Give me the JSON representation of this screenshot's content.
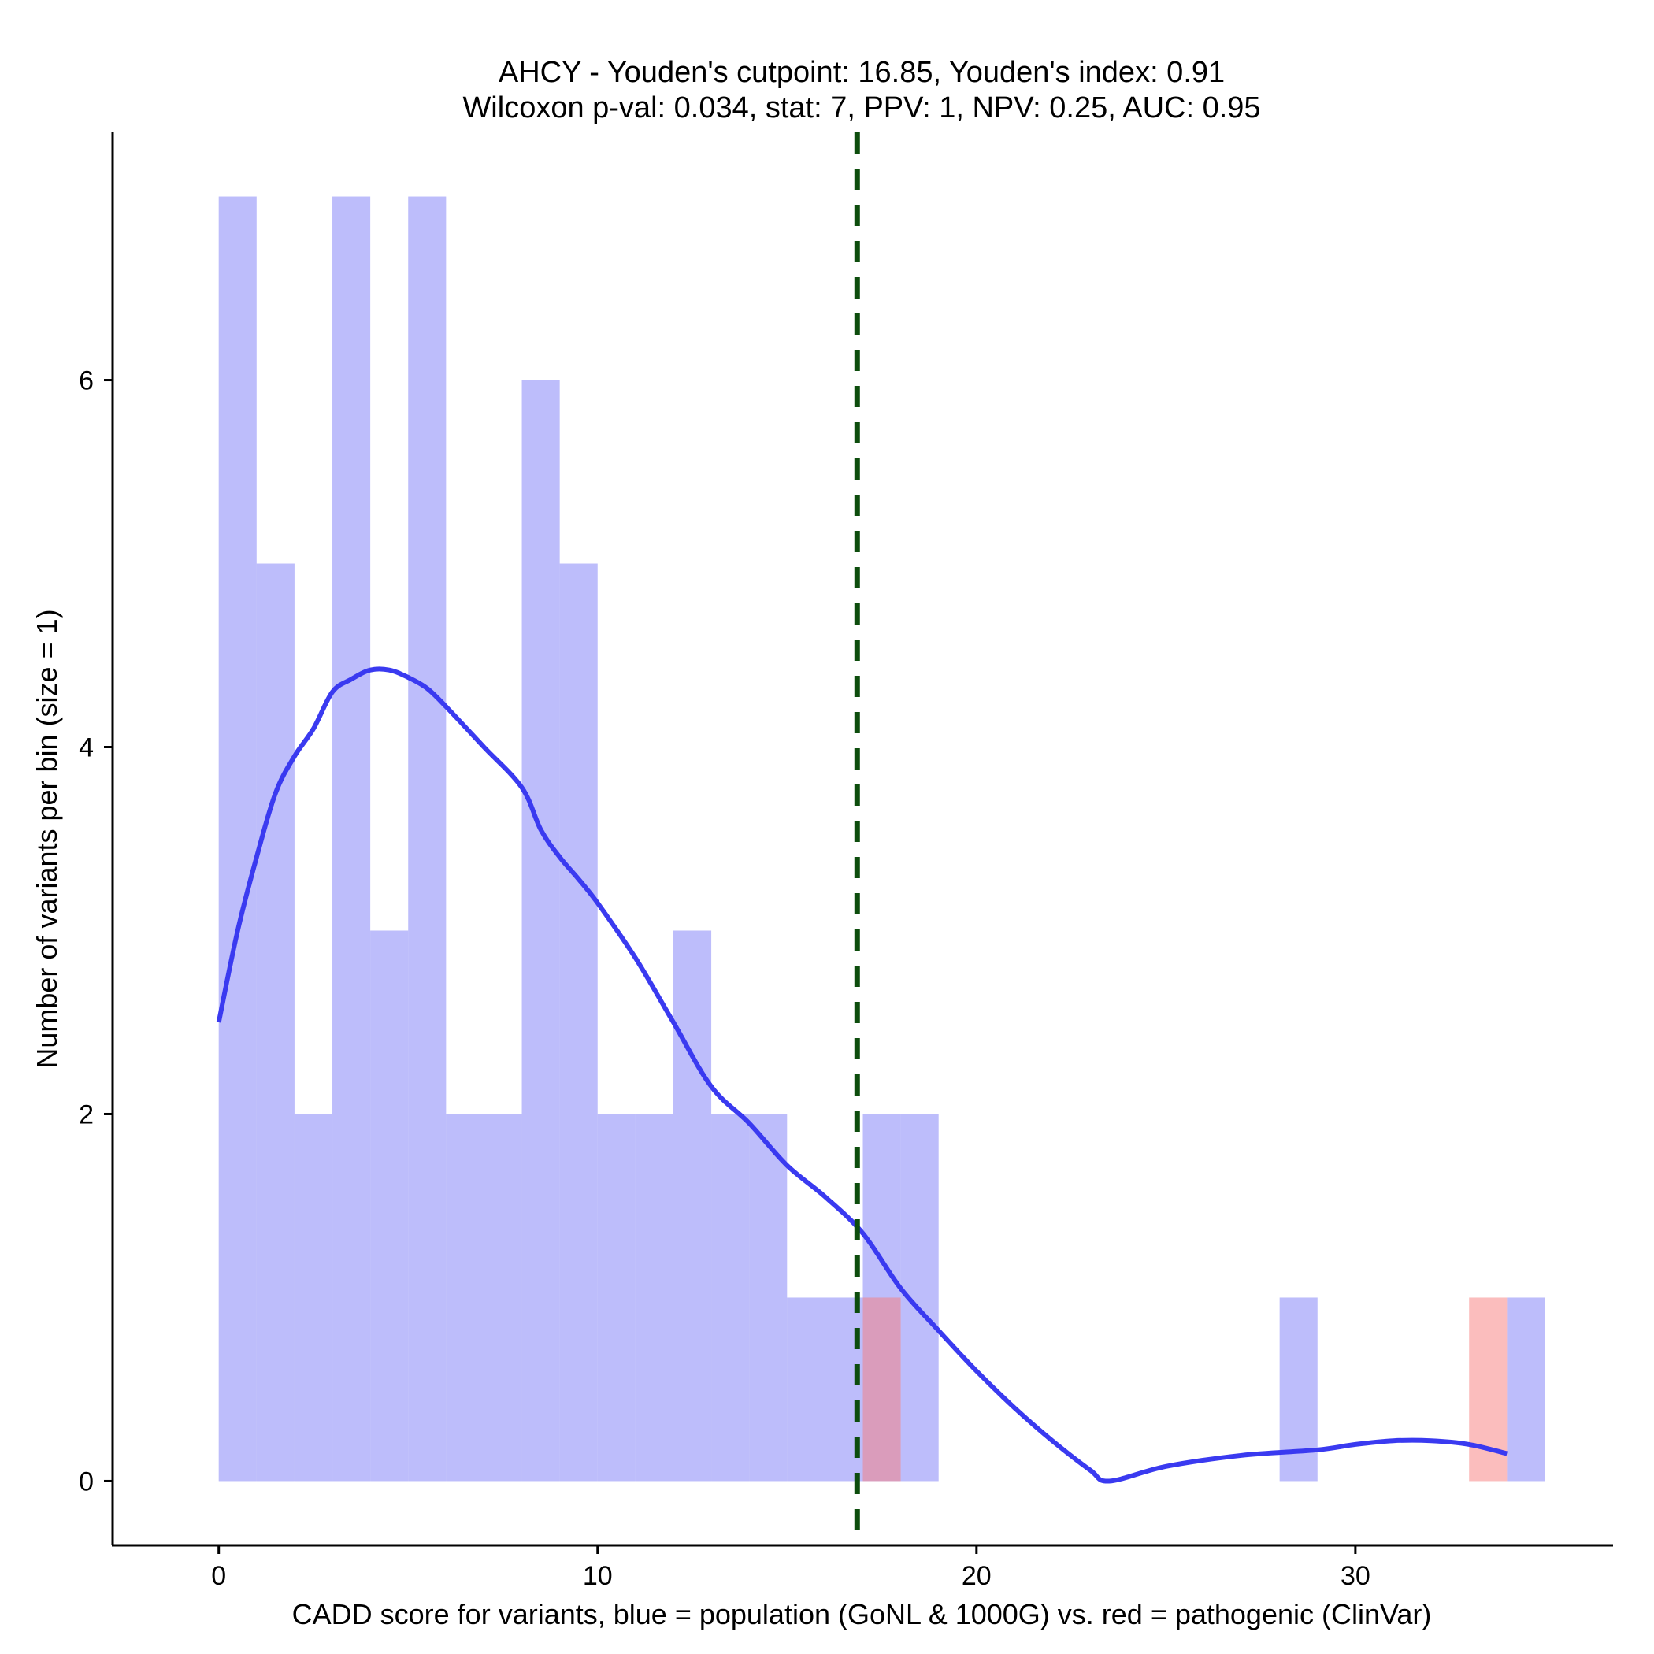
{
  "chart_data": {
    "type": "histogram",
    "title": "AHCY - Youden's cutpoint: 16.85, Youden's index: 0.91",
    "subtitle": "Wilcoxon p-val: 0.034, stat: 7, PPV: 1, NPV: 0.25, AUC: 0.95",
    "xlabel": "CADD score for variants, blue = population (GoNL & 1000G) vs. red = pathogenic (ClinVar)",
    "ylabel": "Number of variants per bin (size = 1)",
    "xlim": [
      -2.8,
      36.8
    ],
    "ylim": [
      -0.35,
      7.35
    ],
    "x_ticks": [
      0,
      10,
      20,
      30
    ],
    "y_ticks": [
      0,
      2,
      4,
      6
    ],
    "bin_size": 1,
    "cutpoint": 16.85,
    "cutpoint_color": "#0d4d0d",
    "series": [
      {
        "name": "population (GoNL & 1000G)",
        "color": "#7b7bf7",
        "opacity": 0.5,
        "bins": [
          {
            "x0": 0,
            "x1": 1,
            "count": 7
          },
          {
            "x0": 1,
            "x1": 2,
            "count": 5
          },
          {
            "x0": 2,
            "x1": 3,
            "count": 2
          },
          {
            "x0": 3,
            "x1": 4,
            "count": 7
          },
          {
            "x0": 4,
            "x1": 5,
            "count": 3
          },
          {
            "x0": 5,
            "x1": 6,
            "count": 7
          },
          {
            "x0": 6,
            "x1": 7,
            "count": 2
          },
          {
            "x0": 7,
            "x1": 8,
            "count": 2
          },
          {
            "x0": 8,
            "x1": 9,
            "count": 6
          },
          {
            "x0": 9,
            "x1": 10,
            "count": 5
          },
          {
            "x0": 10,
            "x1": 11,
            "count": 2
          },
          {
            "x0": 11,
            "x1": 12,
            "count": 2
          },
          {
            "x0": 12,
            "x1": 13,
            "count": 3
          },
          {
            "x0": 13,
            "x1": 14,
            "count": 2
          },
          {
            "x0": 14,
            "x1": 15,
            "count": 2
          },
          {
            "x0": 15,
            "x1": 16,
            "count": 1
          },
          {
            "x0": 16,
            "x1": 17,
            "count": 1
          },
          {
            "x0": 17,
            "x1": 18,
            "count": 2
          },
          {
            "x0": 18,
            "x1": 19,
            "count": 2
          },
          {
            "x0": 28,
            "x1": 29,
            "count": 1
          },
          {
            "x0": 34,
            "x1": 35,
            "count": 1
          }
        ]
      },
      {
        "name": "pathogenic (ClinVar)",
        "color": "#f87b7b",
        "opacity": 0.5,
        "bins": [
          {
            "x0": 17,
            "x1": 18,
            "count": 1
          },
          {
            "x0": 33,
            "x1": 34,
            "count": 1
          }
        ]
      }
    ],
    "density_curve": {
      "name": "population density",
      "color": "#3a3af0",
      "x": [
        0,
        0.5,
        1,
        1.5,
        2,
        2.5,
        3,
        3.5,
        4,
        4.5,
        5,
        5.5,
        6,
        7,
        8,
        8.5,
        9,
        9.5,
        10,
        11,
        12,
        13,
        14,
        15,
        16,
        17,
        18,
        19,
        20,
        21,
        22,
        23,
        23.5,
        25,
        27,
        29,
        30,
        31,
        32,
        33,
        34
      ],
      "y": [
        2.5,
        3.0,
        3.4,
        3.75,
        3.95,
        4.1,
        4.3,
        4.37,
        4.42,
        4.42,
        4.38,
        4.32,
        4.22,
        4.0,
        3.78,
        3.55,
        3.4,
        3.28,
        3.15,
        2.85,
        2.5,
        2.15,
        1.95,
        1.72,
        1.55,
        1.35,
        1.05,
        0.82,
        0.6,
        0.4,
        0.22,
        0.06,
        0.0,
        0.08,
        0.14,
        0.17,
        0.2,
        0.22,
        0.22,
        0.2,
        0.15
      ]
    }
  }
}
